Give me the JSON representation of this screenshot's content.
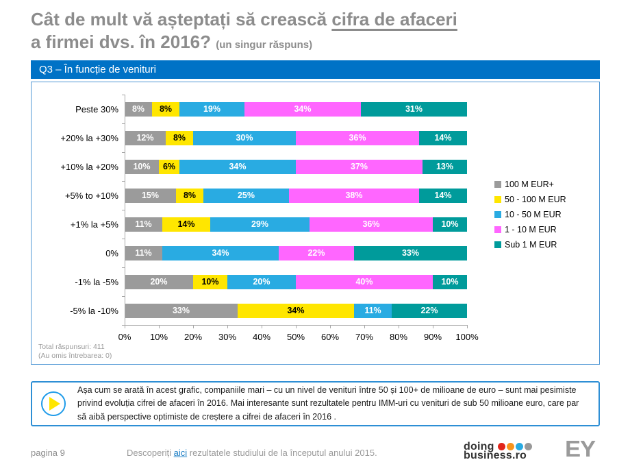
{
  "page": {
    "title_line1_prefix": "Cât de mult vă așteptați să crească ",
    "title_line1_underlined": "cifra de afaceri",
    "title_line2": "a firmei dvs. în 2016?",
    "title_suffix": "(un singur răspuns)",
    "banner": "Q3 – În funcție de venituri"
  },
  "chart_data": {
    "type": "bar",
    "subtype": "horizontal-stacked-100pct",
    "categories": [
      "Peste 30%",
      "+20% la +30%",
      "+10% la +20%",
      "+5% to +10%",
      "+1% la +5%",
      "0%",
      "-1% la -5%",
      "-5% la -10%"
    ],
    "series": [
      {
        "name": "100 M EUR+",
        "color": "#9b9b9b",
        "text_color": "#ffffff",
        "values": [
          8,
          12,
          10,
          15,
          11,
          11,
          20,
          33
        ]
      },
      {
        "name": "50 - 100 M EUR",
        "color": "#FFE600",
        "text_color": "#000000",
        "values": [
          8,
          8,
          6,
          8,
          14,
          0,
          10,
          34
        ]
      },
      {
        "name": "10 - 50 M EUR",
        "color": "#29ABE2",
        "text_color": "#ffffff",
        "values": [
          19,
          30,
          34,
          25,
          29,
          34,
          20,
          11
        ]
      },
      {
        "name": "1 - 10 M EUR",
        "color": "#FF66FF",
        "text_color": "#ffffff",
        "values": [
          34,
          36,
          37,
          38,
          36,
          22,
          40,
          0
        ]
      },
      {
        "name": "Sub 1 M EUR",
        "color": "#009B9B",
        "text_color": "#ffffff",
        "values": [
          31,
          14,
          13,
          14,
          10,
          33,
          10,
          22
        ]
      }
    ],
    "xticks": [
      "0%",
      "10%",
      "20%",
      "30%",
      "40%",
      "50%",
      "60%",
      "70%",
      "80%",
      "90%",
      "100%"
    ],
    "xlim": [
      0,
      100
    ],
    "value_suffix": "%",
    "legend_position": "right",
    "grid": false
  },
  "notes": {
    "total": "Total răspunsuri: 411",
    "omitted": "(Au omis întrebarea: 0)"
  },
  "callout": {
    "text": "Așa cum se arată în acest grafic, companiile mari – cu un nivel de venituri între 50 și 100+ de milioane de euro – sunt mai pesimiste privind evoluția cifrei de afaceri în 2016. Mai interesante sunt rezultatele pentru IMM-uri cu venituri de sub 50 milioane euro, care par să aibă perspective optimiste de creștere a cifrei de afaceri în 2016 ."
  },
  "footer": {
    "page_label": "pagina 9",
    "link_prefix": "Descoperiți ",
    "link_text": "aici",
    "link_suffix": " rezultatele studiului de la începutul anului 2015.",
    "logo_doing": {
      "line1": "doing",
      "line2": "business.ro",
      "dot_colors": [
        "#E1251B",
        "#F7941D",
        "#29ABE2",
        "#999999"
      ]
    },
    "logo_ey": "EY"
  },
  "colors": {
    "banner_blue": "#0072C6",
    "chart_border_blue": "#4f97d4",
    "callout_border_blue": "#2e8fd5",
    "title_gray": "#8c8c8c",
    "link_blue": "#1a7dc4"
  }
}
